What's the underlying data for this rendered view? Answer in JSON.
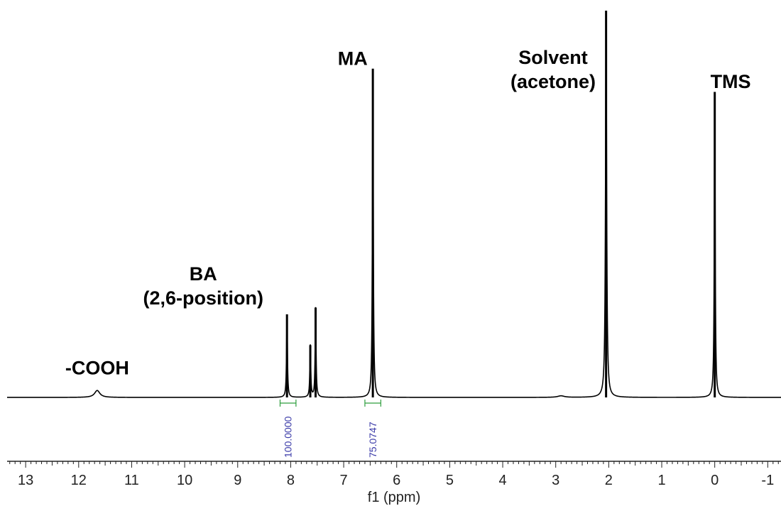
{
  "chart_data": {
    "type": "line",
    "xlabel": "f1 (ppm)",
    "ylabel": "",
    "xlim": [
      13.35,
      -1.25
    ],
    "xaxis_reversed": true,
    "x_ticks": [
      13,
      12,
      11,
      10,
      9,
      8,
      7,
      6,
      5,
      4,
      3,
      2,
      1,
      0,
      -1
    ],
    "grid": false,
    "legend": "none",
    "baseline_intensity": 0,
    "peaks": [
      {
        "ppm": 11.65,
        "intensity": 0.018,
        "width": 0.12
      },
      {
        "ppm": 8.07,
        "intensity": 0.215,
        "width": 0.02
      },
      {
        "ppm": 7.63,
        "intensity": 0.135,
        "width": 0.02
      },
      {
        "ppm": 7.53,
        "intensity": 0.232,
        "width": 0.02
      },
      {
        "ppm": 6.45,
        "intensity": 0.85,
        "width": 0.02
      },
      {
        "ppm": 2.9,
        "intensity": 0.004,
        "width": 0.15
      },
      {
        "ppm": 2.05,
        "intensity": 1.0,
        "width": 0.025
      },
      {
        "ppm": 0.0,
        "intensity": 0.79,
        "width": 0.02
      }
    ],
    "annotations": [
      {
        "lines": [
          "-COOH"
        ],
        "ppm": 11.65,
        "level": 0.06
      },
      {
        "lines": [
          "BA",
          "(2,6-position)"
        ],
        "ppm": 9.65,
        "level": 0.24
      },
      {
        "lines": [
          "MA"
        ],
        "ppm": 6.83,
        "level": 0.86
      },
      {
        "lines": [
          "Solvent",
          "(acetone)"
        ],
        "ppm": 3.05,
        "level": 0.8
      },
      {
        "lines": [
          "TMS"
        ],
        "ppm": -0.3,
        "level": 0.8
      }
    ],
    "integrals": [
      {
        "from": 8.2,
        "to": 7.9,
        "value": "100.0000"
      },
      {
        "from": 6.6,
        "to": 6.3,
        "value": "75.0747"
      }
    ]
  },
  "colors": {
    "spectrum": "#000000",
    "integral_bracket": "#2e9e3e",
    "integral_text": "#3a3aa8",
    "axis": "#222222"
  }
}
